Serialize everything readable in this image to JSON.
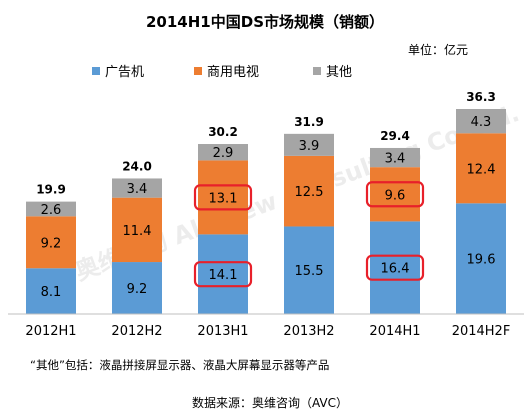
{
  "chart_data": {
    "type": "bar",
    "stacked": true,
    "title": "2014H1中国DS市场规模（销额）",
    "unit_label": "单位：亿元",
    "categories": [
      "2012H1",
      "2012H2",
      "2013H1",
      "2013H2",
      "2014H1",
      "2014H2F"
    ],
    "series": [
      {
        "name": "广告机",
        "color": "#5B9BD5",
        "values": [
          8.1,
          9.2,
          14.1,
          15.5,
          16.4,
          19.6
        ]
      },
      {
        "name": "商用电视",
        "color": "#ED7D31",
        "values": [
          9.2,
          11.4,
          13.1,
          12.5,
          9.6,
          12.4
        ]
      },
      {
        "name": "其他",
        "color": "#A5A5A5",
        "values": [
          2.6,
          3.4,
          2.9,
          3.9,
          3.4,
          4.3
        ]
      }
    ],
    "totals": [
      19.9,
      24.0,
      30.2,
      31.9,
      29.4,
      36.3
    ],
    "total_labels": [
      "19.9",
      "24.0",
      "30.2",
      "31.9",
      "29.4",
      "36.3"
    ],
    "value_labels": [
      [
        "8.1",
        "9.2",
        "14.1",
        "15.5",
        "16.4",
        "19.6"
      ],
      [
        "9.2",
        "11.4",
        "13.1",
        "12.5",
        "9.6",
        "12.4"
      ],
      [
        "2.6",
        "3.4",
        "2.9",
        "3.9",
        "3.4",
        "4.3"
      ]
    ],
    "highlighted": [
      {
        "category": "2013H1",
        "series": "广告机"
      },
      {
        "category": "2013H1",
        "series": "商用电视"
      },
      {
        "category": "2014H1",
        "series": "广告机"
      },
      {
        "category": "2014H1",
        "series": "商用电视"
      }
    ],
    "highlight_color": "#E8202A",
    "legend_position": "top-left",
    "ylim": [
      0,
      36.3
    ],
    "grid": false,
    "footnote": "“其他”包括：液晶拼接屏显示器、液晶大屏幕显示器等产品",
    "source": "数据来源：奥维咨询（AVC）",
    "watermark_text": "奥维咨询 All View Consulting Co.Ltd.",
    "text_color": "#000000"
  }
}
